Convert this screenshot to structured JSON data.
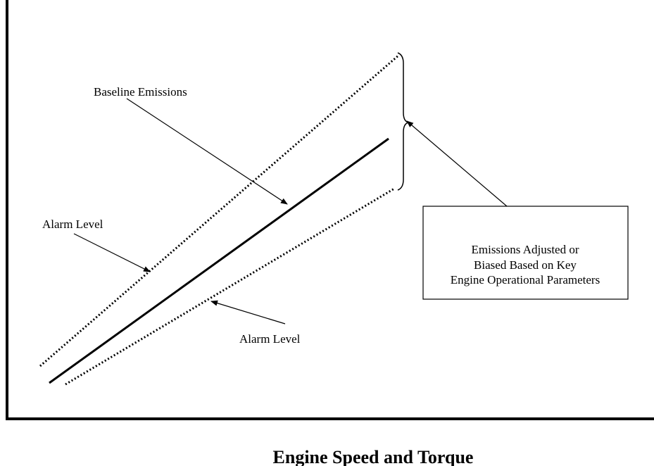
{
  "labels": {
    "baseline": "Baseline Emissions",
    "alarm_upper": "Alarm Level",
    "alarm_lower": "Alarm Level"
  },
  "box": {
    "lines": [
      "Emissions Adjusted or",
      "Biased Based on Key",
      "Engine Operational Parameters"
    ]
  },
  "x_axis_label": "Engine Speed and Torque"
}
